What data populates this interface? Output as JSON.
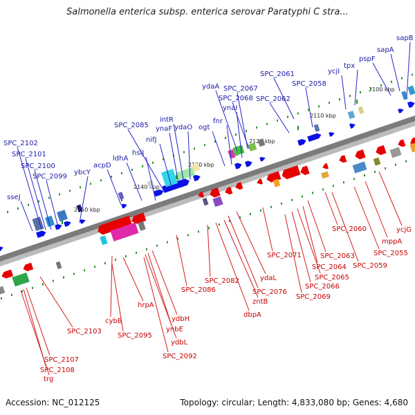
{
  "title": "Salmonella enterica subsp. enterica serovar Paratyphi C stra...",
  "footer": {
    "accession": "Accession: NC_012125",
    "summary": "Topology: circular; Length: 4,833,080 bp; Genes: 4,680"
  },
  "colors": {
    "forward_label": "#1a1aa8",
    "reverse_label": "#c40000",
    "forward_arrow": "#0a10e6",
    "reverse_arrow": "#e60000"
  },
  "ticks": [
    {
      "label": "2100 kbp"
    },
    {
      "label": "2110 kbp"
    },
    {
      "label": "2120 kbp"
    },
    {
      "label": "2130 kbp"
    },
    {
      "label": "2140 kbp"
    },
    {
      "label": "2150 kbp"
    }
  ],
  "forward_genes": [
    {
      "label": "sapB"
    },
    {
      "label": "sapA"
    },
    {
      "label": "pspF"
    },
    {
      "label": "tpx"
    },
    {
      "label": "ycjI"
    },
    {
      "label": "SPC_2061"
    },
    {
      "label": "SPC_2058"
    },
    {
      "label": "SPC_2062"
    },
    {
      "label": "ydaA"
    },
    {
      "label": "SPC_2067"
    },
    {
      "label": "SPC_2068"
    },
    {
      "label": "ynaI"
    },
    {
      "label": "fnr"
    },
    {
      "label": "ogt"
    },
    {
      "label": "ydaO"
    },
    {
      "label": "intR"
    },
    {
      "label": "ynaF"
    },
    {
      "label": "SPC_2085"
    },
    {
      "label": "nifJ"
    },
    {
      "label": "hslJ"
    },
    {
      "label": "ldhA"
    },
    {
      "label": "acpD"
    },
    {
      "label": "ybcY"
    },
    {
      "label": "SPC_2102"
    },
    {
      "label": "SPC_2101"
    },
    {
      "label": "SPC_2100"
    },
    {
      "label": "SPC_2099"
    },
    {
      "label": "sseJ"
    }
  ],
  "reverse_genes": [
    {
      "label": "ycjG"
    },
    {
      "label": "mppA"
    },
    {
      "label": "SPC_2055"
    },
    {
      "label": "SPC_2060"
    },
    {
      "label": "SPC_2059"
    },
    {
      "label": "SPC_2063"
    },
    {
      "label": "SPC_2064"
    },
    {
      "label": "SPC_2065"
    },
    {
      "label": "SPC_2071"
    },
    {
      "label": "SPC_2066"
    },
    {
      "label": "SPC_2069"
    },
    {
      "label": "ydaL"
    },
    {
      "label": "SPC_2076"
    },
    {
      "label": "SPC_2082"
    },
    {
      "label": "zntB"
    },
    {
      "label": "dbpA"
    },
    {
      "label": "SPC_2086"
    },
    {
      "label": "ydbH"
    },
    {
      "label": "ynbE"
    },
    {
      "label": "ydbL"
    },
    {
      "label": "SPC_2092"
    },
    {
      "label": "hrpA"
    },
    {
      "label": "cybB"
    },
    {
      "label": "SPC_2095"
    },
    {
      "label": "SPC_2103"
    },
    {
      "label": "SPC_2107"
    },
    {
      "label": "SPC_2108"
    },
    {
      "label": "trg"
    }
  ]
}
